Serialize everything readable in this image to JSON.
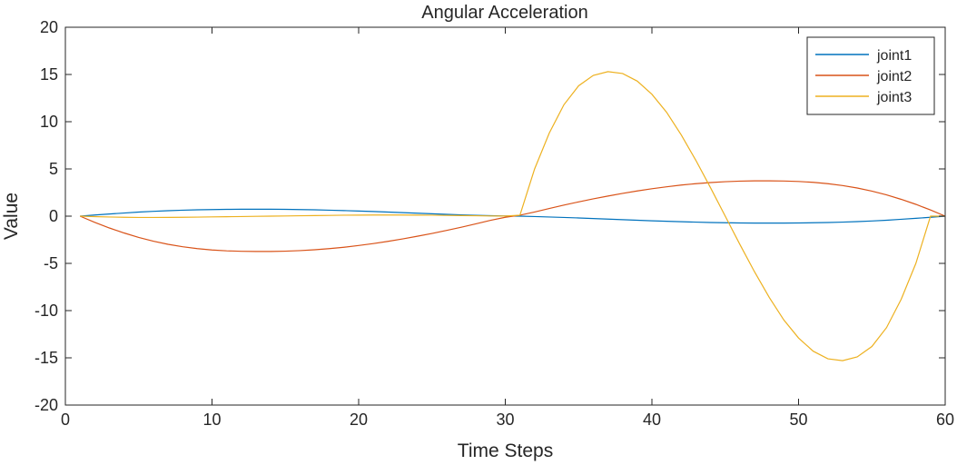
{
  "chart_data": {
    "type": "line",
    "title": "Angular Acceleration",
    "xlabel": "Time Steps",
    "ylabel": "Value",
    "xlim": [
      0,
      60
    ],
    "ylim": [
      -20,
      20
    ],
    "xticks": [
      0,
      10,
      20,
      30,
      40,
      50,
      60
    ],
    "yticks": [
      -20,
      -15,
      -10,
      -5,
      0,
      5,
      10,
      15,
      20
    ],
    "grid": false,
    "legend": {
      "location": "top-right",
      "entries": [
        "joint1",
        "joint2",
        "joint3"
      ]
    },
    "x": [
      1,
      2,
      3,
      4,
      5,
      6,
      7,
      8,
      9,
      10,
      11,
      12,
      13,
      14,
      15,
      16,
      17,
      18,
      19,
      20,
      21,
      22,
      23,
      24,
      25,
      26,
      27,
      28,
      29,
      30,
      31,
      32,
      33,
      34,
      35,
      36,
      37,
      38,
      39,
      40,
      41,
      42,
      43,
      44,
      45,
      46,
      47,
      48,
      49,
      50,
      51,
      52,
      53,
      54,
      55,
      56,
      57,
      58,
      59,
      60
    ],
    "series": [
      {
        "name": "joint1",
        "color": "#0072BD",
        "values": [
          0.0,
          0.12,
          0.23,
          0.33,
          0.43,
          0.51,
          0.58,
          0.63,
          0.67,
          0.7,
          0.72,
          0.73,
          0.73,
          0.73,
          0.72,
          0.7,
          0.67,
          0.63,
          0.59,
          0.54,
          0.49,
          0.43,
          0.37,
          0.31,
          0.25,
          0.19,
          0.14,
          0.09,
          0.05,
          0.02,
          0.0,
          -0.04,
          -0.09,
          -0.14,
          -0.19,
          -0.25,
          -0.31,
          -0.37,
          -0.43,
          -0.49,
          -0.54,
          -0.59,
          -0.63,
          -0.67,
          -0.7,
          -0.72,
          -0.73,
          -0.73,
          -0.73,
          -0.72,
          -0.7,
          -0.67,
          -0.63,
          -0.58,
          -0.51,
          -0.43,
          -0.33,
          -0.23,
          -0.12,
          0.0
        ]
      },
      {
        "name": "joint2",
        "color": "#D95319",
        "values": [
          0.0,
          -0.65,
          -1.25,
          -1.78,
          -2.25,
          -2.65,
          -2.98,
          -3.24,
          -3.44,
          -3.58,
          -3.67,
          -3.72,
          -3.74,
          -3.74,
          -3.71,
          -3.65,
          -3.56,
          -3.44,
          -3.29,
          -3.11,
          -2.9,
          -2.67,
          -2.41,
          -2.13,
          -1.83,
          -1.51,
          -1.17,
          -0.81,
          -0.44,
          -0.12,
          0.1,
          0.44,
          0.81,
          1.17,
          1.51,
          1.83,
          2.13,
          2.41,
          2.67,
          2.9,
          3.11,
          3.29,
          3.44,
          3.56,
          3.65,
          3.71,
          3.74,
          3.74,
          3.72,
          3.67,
          3.58,
          3.44,
          3.24,
          2.98,
          2.65,
          2.25,
          1.78,
          1.25,
          0.65,
          0.0
        ]
      },
      {
        "name": "joint3",
        "color": "#EDB120",
        "values": [
          0.0,
          -0.05,
          -0.09,
          -0.12,
          -0.14,
          -0.14,
          -0.13,
          -0.12,
          -0.1,
          -0.08,
          -0.06,
          -0.04,
          -0.02,
          0.0,
          0.02,
          0.04,
          0.06,
          0.08,
          0.1,
          0.11,
          0.12,
          0.12,
          0.12,
          0.11,
          0.1,
          0.08,
          0.06,
          0.04,
          0.02,
          0.01,
          0.1,
          5.0,
          8.8,
          11.8,
          13.8,
          14.9,
          15.3,
          15.1,
          14.3,
          12.9,
          11.0,
          8.6,
          5.9,
          3.0,
          0.0,
          -3.0,
          -5.9,
          -8.6,
          -11.0,
          -12.9,
          -14.3,
          -15.1,
          -15.3,
          -14.9,
          -13.8,
          -11.8,
          -8.8,
          -5.0,
          0.0,
          0.0
        ]
      }
    ]
  }
}
